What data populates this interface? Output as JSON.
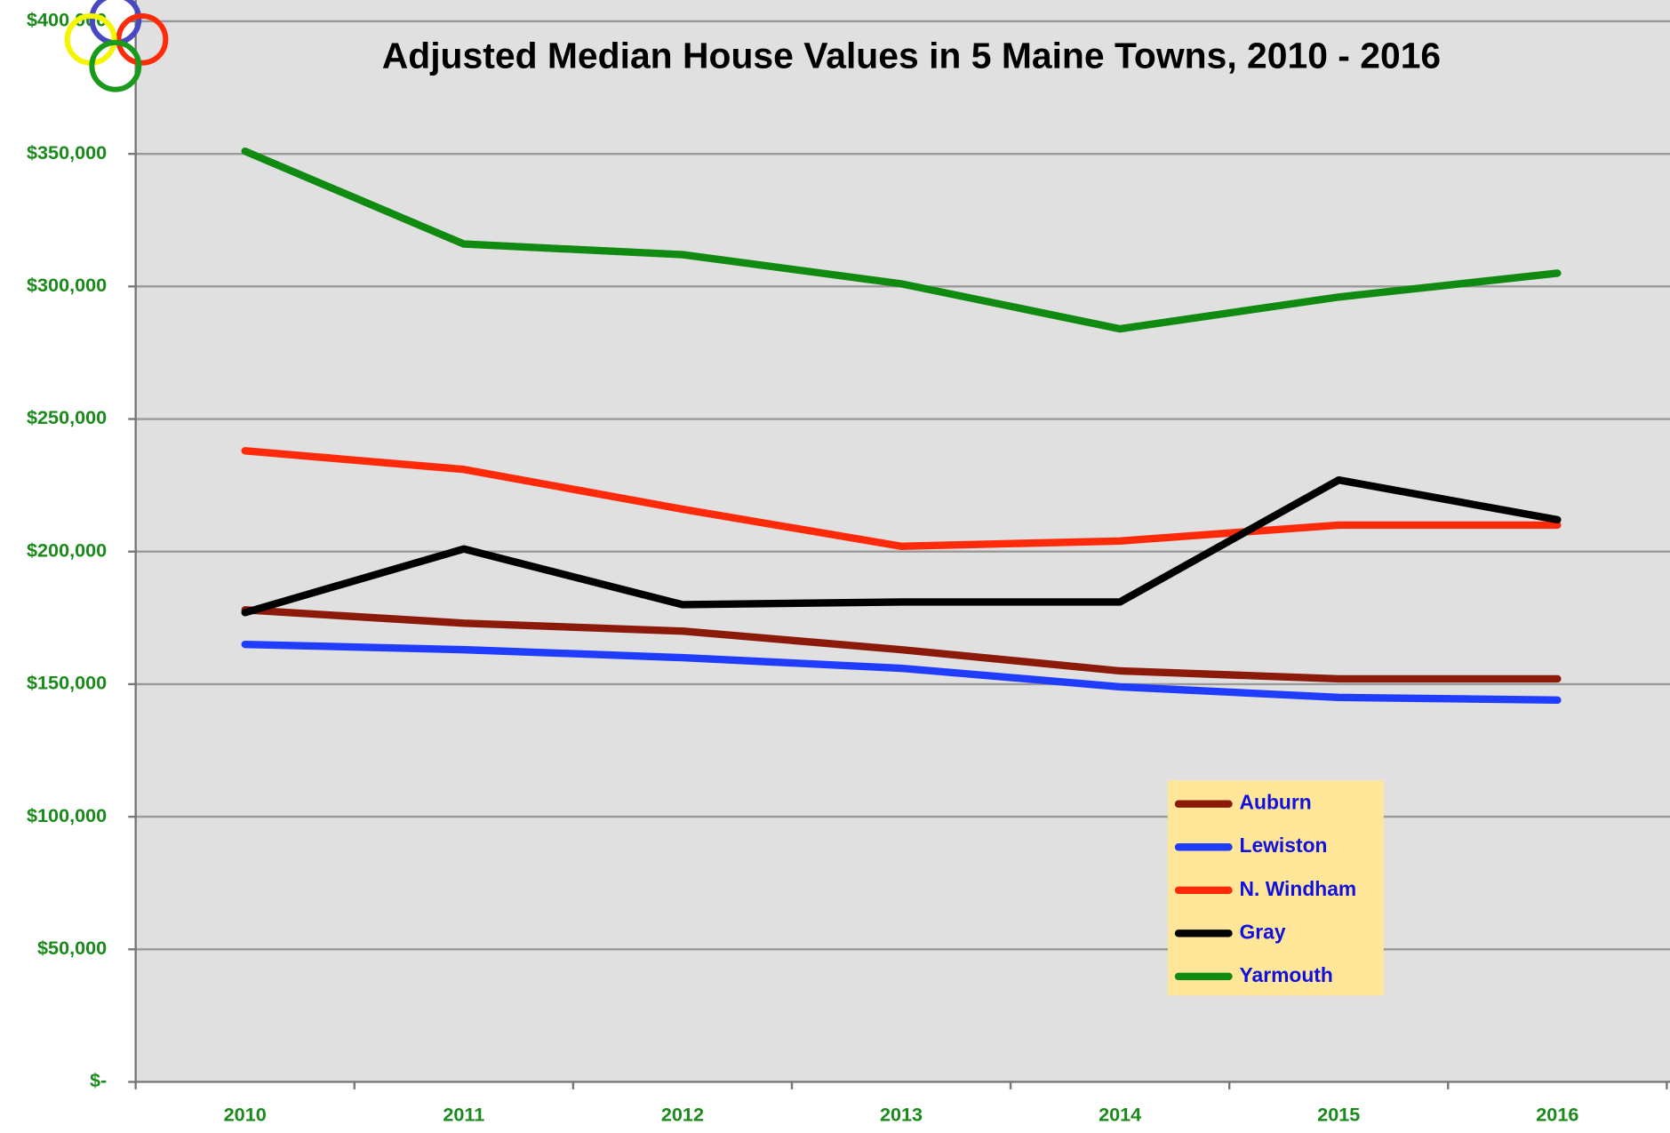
{
  "chart_data": {
    "type": "line",
    "title": "Adjusted Median House Values in 5 Maine Towns, 2010 - 2016",
    "categories": [
      "2010",
      "2011",
      "2012",
      "2013",
      "2014",
      "2015",
      "2016"
    ],
    "series": [
      {
        "name": "Auburn",
        "color": "#8b1a0a",
        "values": [
          178000,
          173000,
          170000,
          163000,
          155000,
          152000,
          152000
        ]
      },
      {
        "name": "Lewiston",
        "color": "#1f3cff",
        "values": [
          165000,
          163000,
          160000,
          156000,
          149000,
          145000,
          144000
        ]
      },
      {
        "name": "N. Windham",
        "color": "#ff2a0a",
        "values": [
          238000,
          231000,
          216000,
          202000,
          204000,
          210000,
          210000
        ]
      },
      {
        "name": "Gray",
        "color": "#000000",
        "values": [
          177000,
          201000,
          180000,
          181000,
          181000,
          227000,
          212000
        ]
      },
      {
        "name": "Yarmouth",
        "color": "#118a11",
        "values": [
          351000,
          316000,
          312000,
          301000,
          284000,
          296000,
          305000
        ]
      }
    ],
    "ylim": [
      0,
      400000
    ],
    "yticks": [
      {
        "value": 0,
        "label": "$-"
      },
      {
        "value": 50000,
        "label": "$50,000"
      },
      {
        "value": 100000,
        "label": "$100,000"
      },
      {
        "value": 150000,
        "label": "$150,000"
      },
      {
        "value": 200000,
        "label": "$200,000"
      },
      {
        "value": 250000,
        "label": "$250,000"
      },
      {
        "value": 300000,
        "label": "$300,000"
      },
      {
        "value": 350000,
        "label": "$350,000"
      },
      {
        "value": 400000,
        "label": "$400,000"
      }
    ],
    "grid": true
  }
}
